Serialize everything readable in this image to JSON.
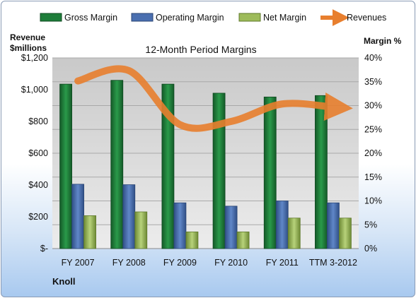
{
  "chart_data": {
    "type": "bar",
    "title": "12-Month Period Margins",
    "categories": [
      "FY 2007",
      "FY 2008",
      "FY 2009",
      "FY 2010",
      "FY 2011",
      "TTM 3-2012"
    ],
    "left_axis": {
      "label_line1": "Revenue",
      "label_line2": "$millions",
      "range": [
        0,
        1200
      ],
      "ticks": [
        "$-",
        "$200",
        "$400",
        "$600",
        "$800",
        "$1,000",
        "$1,200"
      ]
    },
    "right_axis": {
      "label": "Margin %",
      "range": [
        0,
        40
      ],
      "ticks": [
        "0%",
        "5%",
        "10%",
        "15%",
        "20%",
        "25%",
        "30%",
        "35%",
        "40%"
      ]
    },
    "series": [
      {
        "name": "Gross Margin",
        "axis": "right",
        "kind": "bar",
        "color": "#1e7d3a",
        "values": [
          34.5,
          35.3,
          34.5,
          32.6,
          31.8,
          32.1
        ]
      },
      {
        "name": "Operating Margin",
        "axis": "right",
        "kind": "bar",
        "color": "#4a6fb0",
        "values": [
          13.5,
          13.4,
          9.6,
          8.9,
          10.0,
          9.6
        ]
      },
      {
        "name": "Net Margin",
        "axis": "right",
        "kind": "bar",
        "color": "#9dbb5a",
        "values": [
          6.9,
          7.7,
          3.5,
          3.5,
          6.4,
          6.4
        ]
      },
      {
        "name": "Revenues",
        "axis": "left",
        "kind": "line",
        "color": "#e87f2e",
        "values": [
          1055,
          1120,
          780,
          800,
          910,
          890
        ]
      }
    ],
    "footer_label": "Knoll",
    "grid": true,
    "legend_position": "top"
  }
}
